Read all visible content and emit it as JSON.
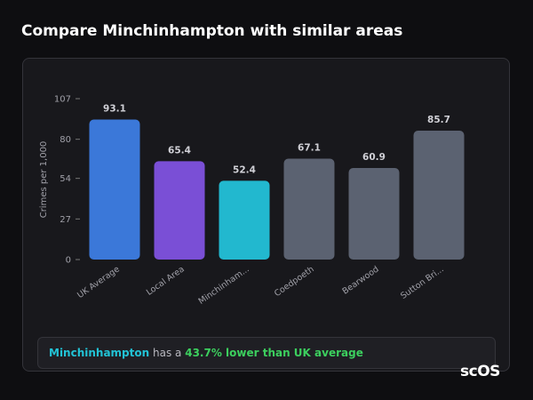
{
  "title": "Compare Minchinhampton with similar areas",
  "chart_data": {
    "type": "bar",
    "y_label": "Crimes per 1,000",
    "categories": [
      "UK Average",
      "Local Area",
      "Minchinham...",
      "Coedpoeth",
      "Bearwood",
      "Sutton Bri..."
    ],
    "values": [
      93.1,
      65.4,
      52.4,
      67.1,
      60.9,
      85.7
    ],
    "colors": [
      "#3b78d9",
      "#7a4fd6",
      "#22b8cf",
      "#5b6271",
      "#5b6271",
      "#5b6271"
    ],
    "ylim": [
      0,
      107
    ],
    "yticks": [
      0,
      27,
      54,
      80,
      107
    ],
    "grid": false
  },
  "summary": {
    "area": "Minchinhampton",
    "text": "has a",
    "highlight": "43.7% lower than UK average"
  },
  "logo": "scOS"
}
